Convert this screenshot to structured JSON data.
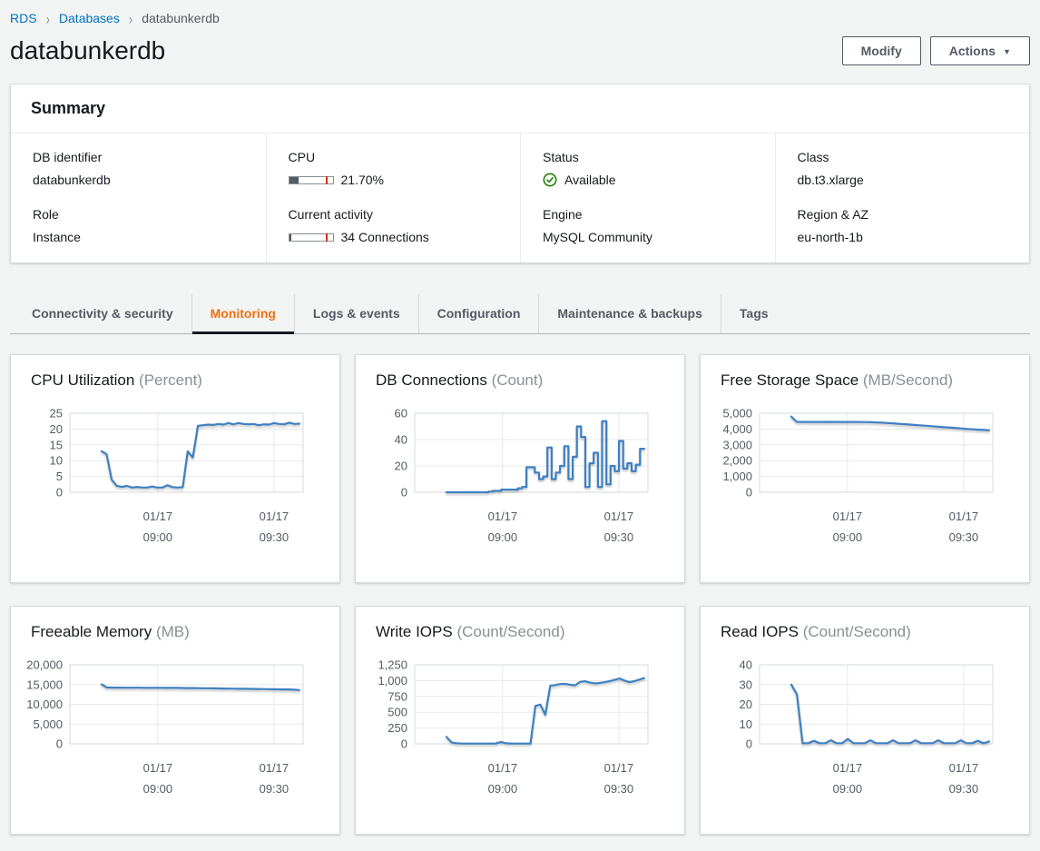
{
  "breadcrumb": {
    "items": [
      "RDS",
      "Databases",
      "databunkerdb"
    ]
  },
  "header": {
    "title": "databunkerdb",
    "modify_label": "Modify",
    "actions_label": "Actions"
  },
  "summary": {
    "title": "Summary",
    "fields": [
      {
        "label": "DB identifier",
        "value": "databunkerdb"
      },
      {
        "label": "Role",
        "value": "Instance"
      },
      {
        "label": "CPU",
        "value": "21.70%",
        "bar_percent": 22,
        "marker_percent": 85
      },
      {
        "label": "Current activity",
        "value": "34 Connections",
        "bar_percent": 6,
        "marker_percent": 85
      },
      {
        "label": "Status",
        "value": "Available"
      },
      {
        "label": "Engine",
        "value": "MySQL Community"
      },
      {
        "label": "Class",
        "value": "db.t3.xlarge"
      },
      {
        "label": "Region & AZ",
        "value": "eu-north-1b"
      }
    ]
  },
  "tabs": [
    {
      "label": "Connectivity & security",
      "active": false
    },
    {
      "label": "Monitoring",
      "active": true
    },
    {
      "label": "Logs & events",
      "active": false
    },
    {
      "label": "Configuration",
      "active": false
    },
    {
      "label": "Maintenance & backups",
      "active": false
    },
    {
      "label": "Tags",
      "active": false
    }
  ],
  "colors": {
    "line": "#3e80c2",
    "accent_orange": "#ec7211",
    "link_blue": "#0073bb",
    "status_green": "#1d8102",
    "marker_red": "#d13212",
    "grid": "#e7eaea",
    "plot_border": "#d5dbdb",
    "text_dark": "#16191f",
    "text_secondary": "#545b64"
  },
  "chart_data": [
    {
      "type": "line",
      "title": "CPU Utilization",
      "unit": "(Percent)",
      "ylim": [
        0,
        25
      ],
      "step": false,
      "x_start": 0.136,
      "x_end": 0.984,
      "yticks": [
        {
          "value": 25,
          "label": "25"
        },
        {
          "value": 20,
          "label": "20"
        },
        {
          "value": 15,
          "label": "15"
        },
        {
          "value": 10,
          "label": "10"
        },
        {
          "value": 5,
          "label": "5"
        },
        {
          "value": 0,
          "label": "0"
        }
      ],
      "xticks": [
        {
          "pos": 0.377,
          "date": "01/17",
          "time": "09:00"
        },
        {
          "pos": 0.875,
          "date": "01/17",
          "time": "09:30"
        }
      ],
      "values": [
        13,
        12,
        4,
        2,
        1.7,
        2,
        1.5,
        1.7,
        1.5,
        1.5,
        1.8,
        1.5,
        1.5,
        2.2,
        1.6,
        1.5,
        1.6,
        13,
        11,
        21,
        21.2,
        21.4,
        21.3,
        21.6,
        21.4,
        21.9,
        21.5,
        21.9,
        21.6,
        21.5,
        21.6,
        21.2,
        21.5,
        21.4,
        21.9,
        21.6,
        21.5,
        22,
        21.6,
        21.7
      ]
    },
    {
      "type": "line",
      "title": "DB Connections",
      "unit": "(Count)",
      "ylim": [
        0,
        60
      ],
      "step": true,
      "x_start": 0.136,
      "x_end": 0.984,
      "yticks": [
        {
          "value": 60,
          "label": "60"
        },
        {
          "value": 40,
          "label": "40"
        },
        {
          "value": 20,
          "label": "20"
        },
        {
          "value": 0,
          "label": "0"
        }
      ],
      "xticks": [
        {
          "pos": 0.377,
          "date": "01/17",
          "time": "09:00"
        },
        {
          "pos": 0.875,
          "date": "01/17",
          "time": "09:30"
        }
      ],
      "values": [
        0,
        0,
        0,
        0,
        0,
        0,
        0,
        0,
        0,
        0,
        0.5,
        1,
        1,
        2,
        2,
        2,
        2,
        3,
        4,
        19,
        19,
        15,
        10,
        12,
        34,
        10,
        15,
        20,
        35,
        10,
        27,
        50,
        42,
        4,
        22,
        30,
        4,
        54,
        6,
        20,
        16,
        39,
        18,
        22,
        16,
        21,
        33,
        33
      ]
    },
    {
      "type": "line",
      "title": "Free Storage Space",
      "unit": "(MB/Second)",
      "ylim": [
        0,
        5000
      ],
      "step": false,
      "x_start": 0.136,
      "x_end": 0.984,
      "yticks": [
        {
          "value": 5000,
          "label": "5,000"
        },
        {
          "value": 4000,
          "label": "4,000"
        },
        {
          "value": 3000,
          "label": "3,000"
        },
        {
          "value": 2000,
          "label": "2,000"
        },
        {
          "value": 1000,
          "label": "1,000"
        },
        {
          "value": 0,
          "label": "0"
        }
      ],
      "xticks": [
        {
          "pos": 0.377,
          "date": "01/17",
          "time": "09:00"
        },
        {
          "pos": 0.875,
          "date": "01/17",
          "time": "09:30"
        }
      ],
      "values": [
        4790,
        4460,
        4450,
        4450,
        4450,
        4450,
        4450,
        4455,
        4450,
        4450,
        4450,
        4450,
        4450,
        4445,
        4440,
        4430,
        4415,
        4400,
        4380,
        4360,
        4335,
        4310,
        4285,
        4260,
        4235,
        4210,
        4185,
        4160,
        4135,
        4110,
        4085,
        4060,
        4030,
        4000,
        3980,
        3960,
        3940,
        3920
      ]
    },
    {
      "type": "line",
      "title": "Freeable Memory",
      "unit": "(MB)",
      "ylim": [
        0,
        20000
      ],
      "step": false,
      "x_start": 0.136,
      "x_end": 0.984,
      "yticks": [
        {
          "value": 20000,
          "label": "20,000"
        },
        {
          "value": 15000,
          "label": "15,000"
        },
        {
          "value": 10000,
          "label": "10,000"
        },
        {
          "value": 5000,
          "label": "5,000"
        },
        {
          "value": 0,
          "label": "0"
        }
      ],
      "xticks": [
        {
          "pos": 0.377,
          "date": "01/17",
          "time": "09:00"
        },
        {
          "pos": 0.875,
          "date": "01/17",
          "time": "09:30"
        }
      ],
      "values": [
        15050,
        14280,
        14230,
        14220,
        14215,
        14210,
        14205,
        14200,
        14195,
        14190,
        14185,
        14180,
        14170,
        14160,
        14150,
        14140,
        14125,
        14110,
        14095,
        14080,
        14060,
        14040,
        14020,
        14000,
        13980,
        13960,
        13940,
        13920,
        13900,
        13880,
        13860,
        13840,
        13820,
        13800,
        13780,
        13760,
        13700,
        13600
      ]
    },
    {
      "type": "line",
      "title": "Write IOPS",
      "unit": "(Count/Second)",
      "ylim": [
        0,
        1250
      ],
      "step": false,
      "x_start": 0.136,
      "x_end": 0.984,
      "yticks": [
        {
          "value": 1250,
          "label": "1,250"
        },
        {
          "value": 1000,
          "label": "1,000"
        },
        {
          "value": 750,
          "label": "750"
        },
        {
          "value": 500,
          "label": "500"
        },
        {
          "value": 250,
          "label": "250"
        },
        {
          "value": 0,
          "label": "0"
        }
      ],
      "xticks": [
        {
          "pos": 0.377,
          "date": "01/17",
          "time": "09:00"
        },
        {
          "pos": 0.875,
          "date": "01/17",
          "time": "09:30"
        }
      ],
      "values": [
        110,
        25,
        8,
        5,
        5,
        5,
        5,
        5,
        5,
        5,
        5,
        30,
        8,
        5,
        5,
        5,
        5,
        5,
        600,
        620,
        460,
        920,
        930,
        945,
        950,
        935,
        925,
        980,
        990,
        968,
        956,
        962,
        975,
        990,
        1012,
        1035,
        1002,
        976,
        992,
        1016,
        1040
      ]
    },
    {
      "type": "line",
      "title": "Read IOPS",
      "unit": "(Count/Second)",
      "ylim": [
        0,
        40
      ],
      "step": false,
      "x_start": 0.136,
      "x_end": 0.984,
      "yticks": [
        {
          "value": 40,
          "label": "40"
        },
        {
          "value": 30,
          "label": "30"
        },
        {
          "value": 20,
          "label": "20"
        },
        {
          "value": 10,
          "label": "10"
        },
        {
          "value": 0,
          "label": "0"
        }
      ],
      "xticks": [
        {
          "pos": 0.377,
          "date": "01/17",
          "time": "09:00"
        },
        {
          "pos": 0.875,
          "date": "01/17",
          "time": "09:30"
        }
      ],
      "values": [
        30,
        25,
        0.3,
        0.3,
        1.5,
        0.3,
        0.3,
        1.8,
        0.3,
        0.3,
        2.5,
        0.3,
        0.3,
        0.3,
        1.8,
        0.3,
        0.3,
        0.3,
        1.8,
        0.3,
        0.3,
        0.3,
        1.8,
        0.3,
        0.3,
        0.3,
        1.8,
        0.3,
        0.3,
        0.3,
        1.8,
        0.3,
        0.3,
        1.5,
        0.3,
        1.2
      ]
    }
  ]
}
